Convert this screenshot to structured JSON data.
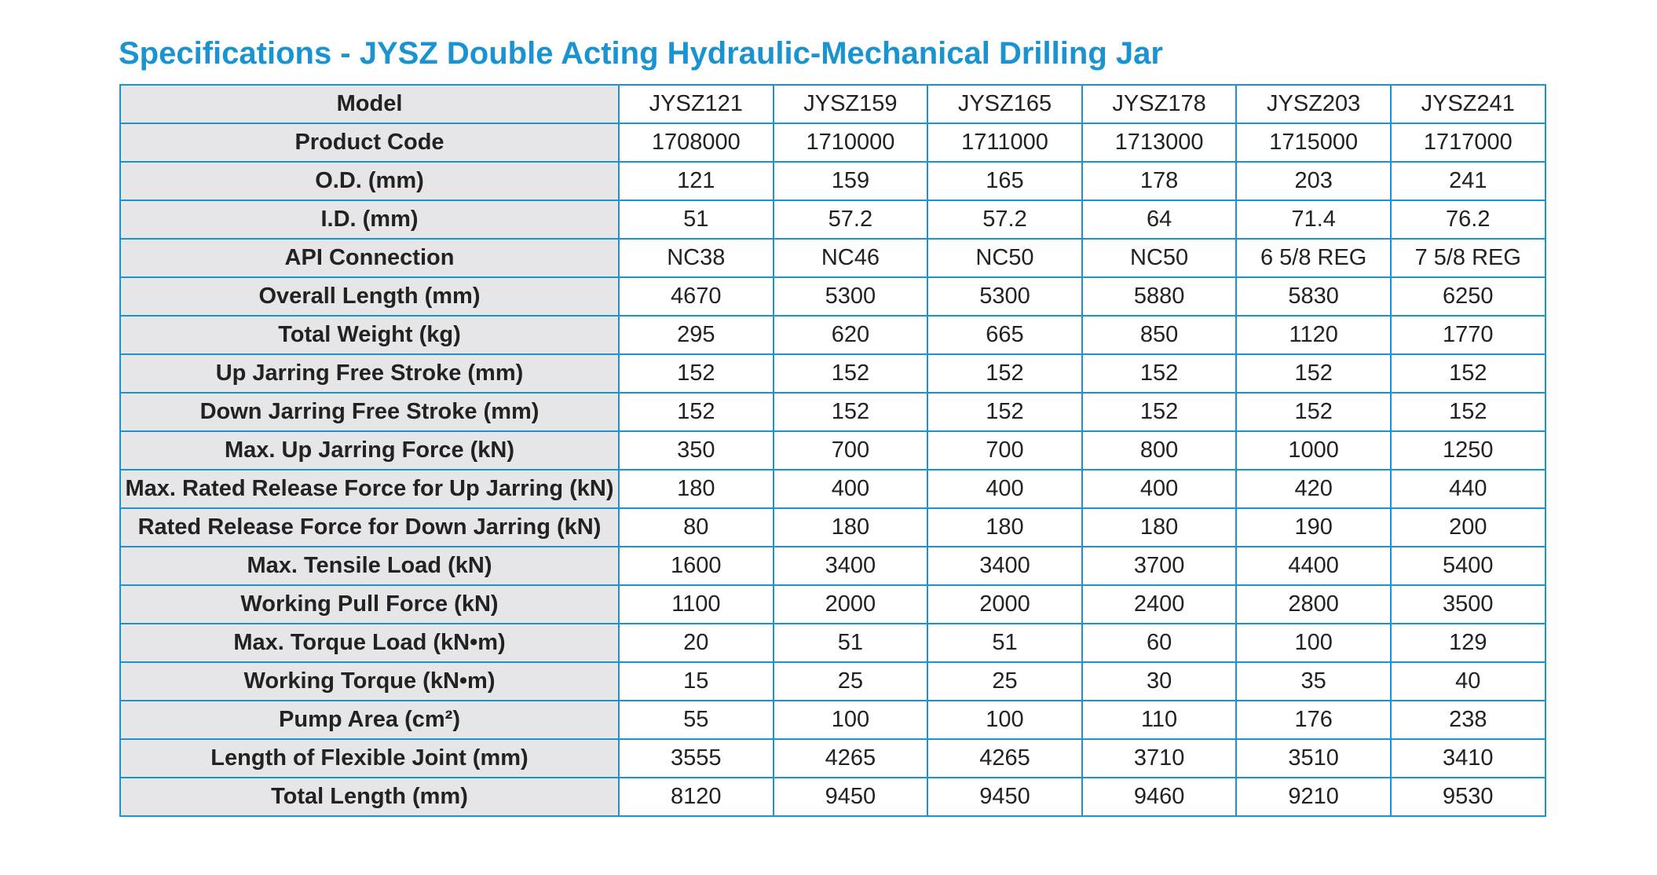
{
  "title": "Specifications - JYSZ Double Acting Hydraulic-Mechanical Drilling Jar",
  "table": {
    "rows": [
      {
        "label": "Model",
        "values": [
          "JYSZ121",
          "JYSZ159",
          "JYSZ165",
          "JYSZ178",
          "JYSZ203",
          "JYSZ241"
        ]
      },
      {
        "label": "Product Code",
        "values": [
          "1708000",
          "1710000",
          "1711000",
          "1713000",
          "1715000",
          "1717000"
        ]
      },
      {
        "label": "O.D. (mm)",
        "values": [
          "121",
          "159",
          "165",
          "178",
          "203",
          "241"
        ]
      },
      {
        "label": "I.D. (mm)",
        "values": [
          "51",
          "57.2",
          "57.2",
          "64",
          "71.4",
          "76.2"
        ]
      },
      {
        "label": "API Connection",
        "values": [
          "NC38",
          "NC46",
          "NC50",
          "NC50",
          "6 5/8 REG",
          "7 5/8 REG"
        ]
      },
      {
        "label": "Overall Length (mm)",
        "values": [
          "4670",
          "5300",
          "5300",
          "5880",
          "5830",
          "6250"
        ]
      },
      {
        "label": "Total Weight (kg)",
        "values": [
          "295",
          "620",
          "665",
          "850",
          "1120",
          "1770"
        ]
      },
      {
        "label": "Up Jarring Free Stroke (mm)",
        "values": [
          "152",
          "152",
          "152",
          "152",
          "152",
          "152"
        ]
      },
      {
        "label": "Down Jarring Free Stroke (mm)",
        "values": [
          "152",
          "152",
          "152",
          "152",
          "152",
          "152"
        ]
      },
      {
        "label": "Max. Up Jarring Force (kN)",
        "values": [
          "350",
          "700",
          "700",
          "800",
          "1000",
          "1250"
        ]
      },
      {
        "label": "Max. Rated Release Force for Up Jarring (kN)",
        "values": [
          "180",
          "400",
          "400",
          "400",
          "420",
          "440"
        ]
      },
      {
        "label": "Rated Release Force for Down Jarring (kN)",
        "values": [
          "80",
          "180",
          "180",
          "180",
          "190",
          "200"
        ]
      },
      {
        "label": "Max. Tensile Load (kN)",
        "values": [
          "1600",
          "3400",
          "3400",
          "3700",
          "4400",
          "5400"
        ]
      },
      {
        "label": "Working Pull Force (kN)",
        "values": [
          "1100",
          "2000",
          "2000",
          "2400",
          "2800",
          "3500"
        ]
      },
      {
        "label": "Max. Torque Load (kN•m)",
        "values": [
          "20",
          "51",
          "51",
          "60",
          "100",
          "129"
        ]
      },
      {
        "label": "Working Torque (kN•m)",
        "values": [
          "15",
          "25",
          "25",
          "30",
          "35",
          "40"
        ]
      },
      {
        "label": "Pump Area (cm²)",
        "values": [
          "55",
          "100",
          "100",
          "110",
          "176",
          "238"
        ]
      },
      {
        "label": "Length of Flexible Joint (mm)",
        "values": [
          "3555",
          "4265",
          "4265",
          "3710",
          "3510",
          "3410"
        ]
      },
      {
        "label": "Total Length (mm)",
        "values": [
          "8120",
          "9450",
          "9450",
          "9460",
          "9210",
          "9530"
        ]
      }
    ]
  },
  "colors": {
    "accent": "#1a93d1",
    "label_background": "#e6e6e8",
    "text": "#222222"
  }
}
